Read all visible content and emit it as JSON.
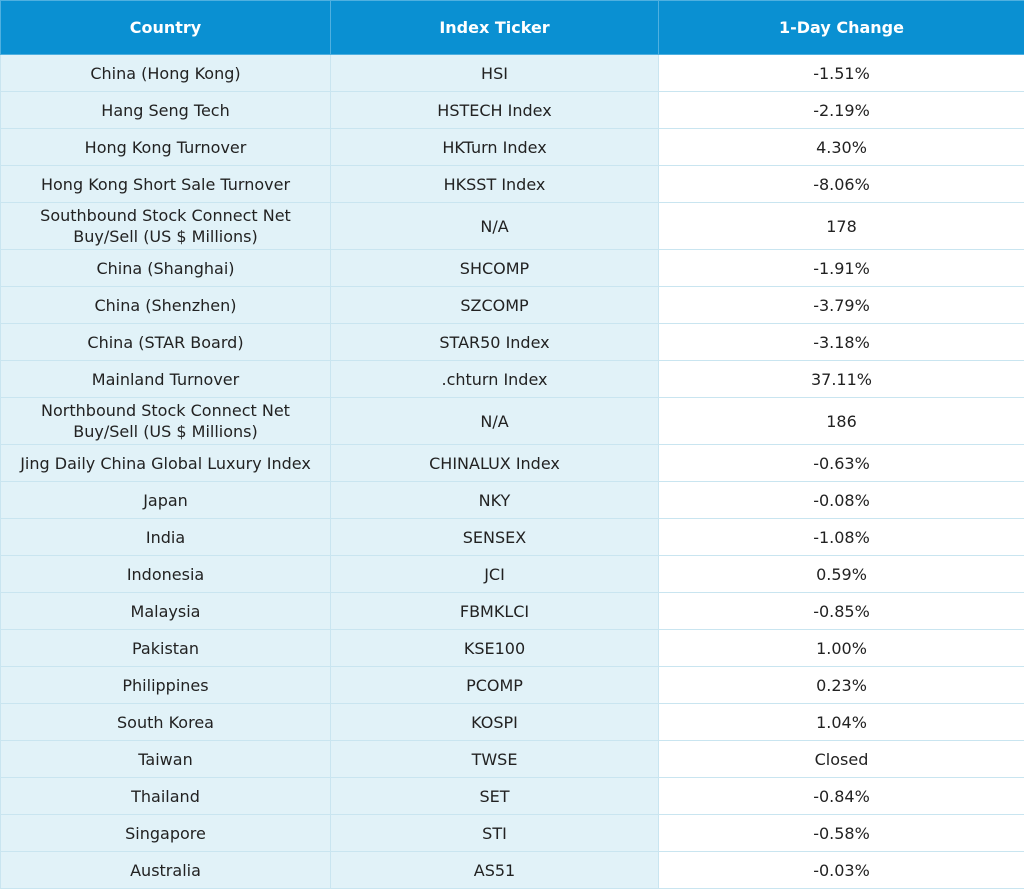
{
  "table": {
    "header": [
      "Country",
      "Index Ticker",
      "1-Day Change"
    ],
    "rows": [
      [
        "China (Hong Kong)",
        "HSI",
        "-1.51%"
      ],
      [
        "Hang Seng Tech",
        "HSTECH Index",
        "-2.19%"
      ],
      [
        "Hong Kong Turnover",
        "HKTurn Index",
        "4.30%"
      ],
      [
        "Hong Kong Short Sale Turnover",
        "HKSST Index",
        "-8.06%"
      ],
      [
        "Southbound Stock Connect Net\nBuy/Sell (US $ Millions)",
        "N/A",
        "178"
      ],
      [
        "China (Shanghai)",
        "SHCOMP",
        "-1.91%"
      ],
      [
        "China (Shenzhen)",
        "SZCOMP",
        "-3.79%"
      ],
      [
        "China (STAR Board)",
        "STAR50 Index",
        "-3.18%"
      ],
      [
        "Mainland Turnover",
        ".chturn Index",
        "37.11%"
      ],
      [
        "Northbound Stock Connect Net\nBuy/Sell (US $ Millions)",
        "N/A",
        "186"
      ],
      [
        "Jing Daily China Global Luxury Index",
        "CHINALUX Index",
        "-0.63%"
      ],
      [
        "Japan",
        "NKY",
        "-0.08%"
      ],
      [
        "India",
        "SENSEX",
        "-1.08%"
      ],
      [
        "Indonesia",
        "JCI",
        "0.59%"
      ],
      [
        "Malaysia",
        "FBMKLCI",
        "-0.85%"
      ],
      [
        "Pakistan",
        "KSE100",
        "1.00%"
      ],
      [
        "Philippines",
        "PCOMP",
        "0.23%"
      ],
      [
        "South Korea",
        "KOSPI",
        "1.04%"
      ],
      [
        "Taiwan",
        "TWSE",
        "Closed"
      ],
      [
        "Thailand",
        "SET",
        "-0.84%"
      ],
      [
        "Singapore",
        "STI",
        "-0.58%"
      ],
      [
        "Australia",
        "AS51",
        "-0.03%"
      ]
    ]
  }
}
